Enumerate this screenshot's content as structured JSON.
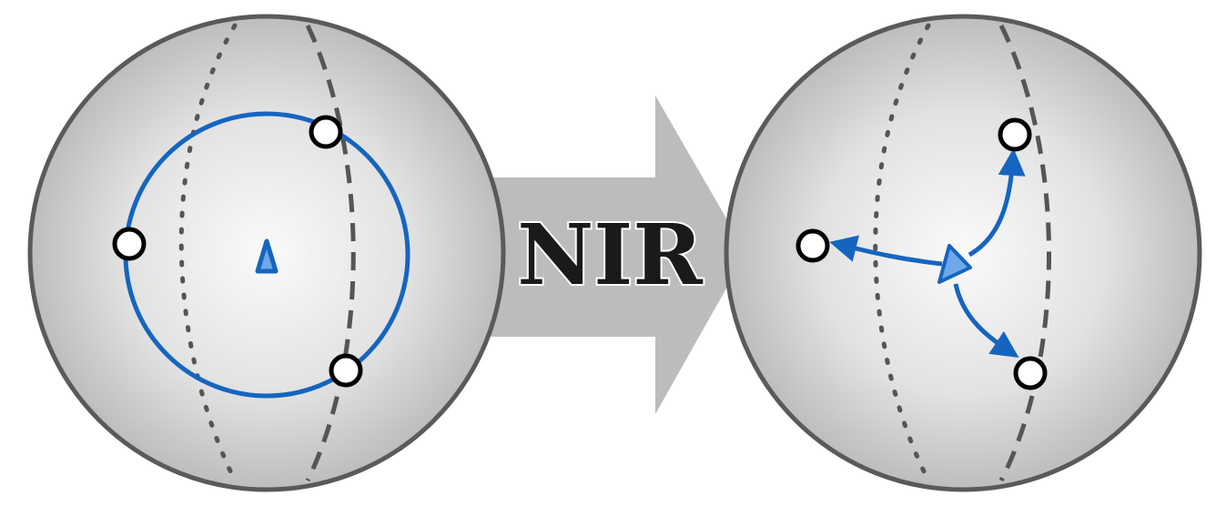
{
  "diagram": {
    "arrow_label": "NIR",
    "colors": {
      "sphere_outline": "#5a5a5a",
      "sphere_fill_center": "#fafafa",
      "sphere_fill_edge": "#bdbdbd",
      "arrow_fill": "#bcbcbc",
      "accent_blue": "#1565c0",
      "light_blue": "#6ea8e8",
      "meridian": "#555555",
      "particle_fill": "#ffffff",
      "particle_stroke": "#000000"
    },
    "left_sphere": {
      "icons": [
        "circle-orbit",
        "triangle-marker",
        "particle"
      ],
      "particle_count": 3
    },
    "right_sphere": {
      "icons": [
        "triangle-marker",
        "curved-arrow",
        "particle"
      ],
      "particle_count": 3,
      "arrow_count": 3
    }
  }
}
